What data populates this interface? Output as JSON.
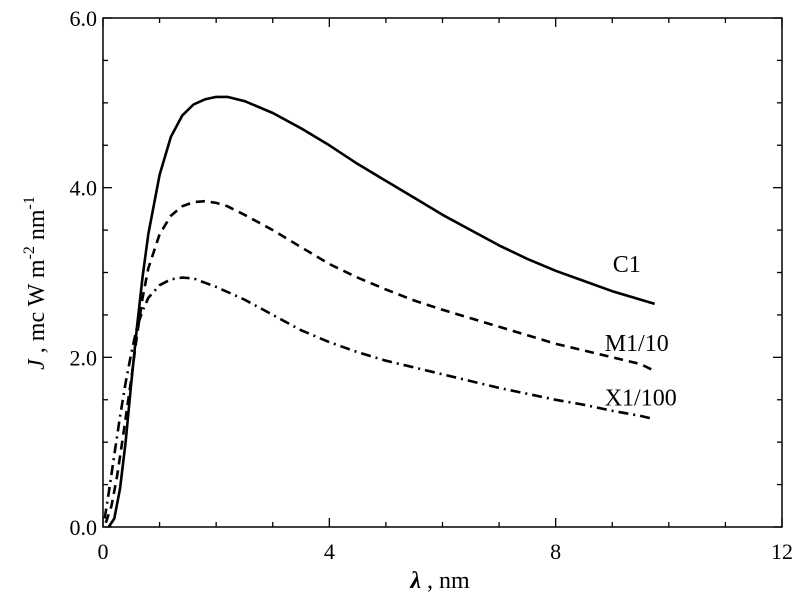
{
  "chart_data": {
    "type": "line",
    "xlabel": "nm",
    "xlabel_symbol": "λ",
    "ylabel_parts": {
      "symbol": "J",
      "units": "mc W m",
      "exp1": "-2",
      "mid": " nm",
      "exp2": "-1"
    },
    "xlim": [
      0,
      12
    ],
    "ylim": [
      0,
      6
    ],
    "x_ticks": [
      0,
      4,
      8,
      12
    ],
    "x_tick_labels": [
      "0",
      "4",
      "8",
      "12"
    ],
    "y_ticks": [
      0,
      2,
      4,
      6
    ],
    "y_tick_labels": [
      "0.0",
      "2.0",
      "4.0",
      "6.0"
    ],
    "grid": false,
    "series": [
      {
        "name": "C1",
        "style": "solid",
        "x": [
          0.1,
          0.2,
          0.3,
          0.4,
          0.5,
          0.6,
          0.7,
          0.8,
          1.0,
          1.2,
          1.4,
          1.6,
          1.8,
          2.0,
          2.2,
          2.5,
          3.0,
          3.5,
          4.0,
          4.5,
          5.0,
          5.5,
          6.0,
          6.5,
          7.0,
          7.5,
          8.0,
          8.5,
          9.0,
          9.5,
          9.75
        ],
        "y": [
          0.0,
          0.1,
          0.45,
          1.0,
          1.7,
          2.35,
          2.95,
          3.45,
          4.15,
          4.6,
          4.85,
          4.98,
          5.04,
          5.07,
          5.07,
          5.02,
          4.88,
          4.7,
          4.5,
          4.28,
          4.08,
          3.88,
          3.68,
          3.5,
          3.32,
          3.16,
          3.02,
          2.9,
          2.78,
          2.68,
          2.63
        ]
      },
      {
        "name": "M1/10",
        "style": "dashed",
        "x": [
          0.05,
          0.15,
          0.25,
          0.35,
          0.5,
          0.6,
          0.7,
          0.8,
          1.0,
          1.2,
          1.4,
          1.6,
          1.8,
          2.0,
          2.2,
          2.5,
          3.0,
          3.5,
          4.0,
          4.5,
          5.0,
          5.5,
          6.0,
          6.5,
          7.0,
          7.5,
          8.0,
          8.5,
          9.0,
          9.5,
          9.75
        ],
        "y": [
          0.05,
          0.25,
          0.6,
          1.05,
          1.75,
          2.25,
          2.7,
          3.05,
          3.45,
          3.67,
          3.78,
          3.83,
          3.84,
          3.82,
          3.78,
          3.68,
          3.5,
          3.3,
          3.1,
          2.94,
          2.8,
          2.67,
          2.56,
          2.46,
          2.36,
          2.26,
          2.16,
          2.08,
          2.0,
          1.92,
          1.84
        ]
      },
      {
        "name": "X1/100",
        "style": "dashdot",
        "x": [
          0.03,
          0.1,
          0.2,
          0.3,
          0.4,
          0.5,
          0.6,
          0.7,
          0.8,
          1.0,
          1.2,
          1.4,
          1.6,
          1.8,
          2.0,
          2.2,
          2.5,
          3.0,
          3.5,
          4.0,
          4.5,
          5.0,
          5.5,
          6.0,
          6.5,
          7.0,
          7.5,
          8.0,
          8.5,
          9.0,
          9.5,
          9.75
        ],
        "y": [
          0.1,
          0.4,
          0.85,
          1.3,
          1.7,
          2.05,
          2.35,
          2.55,
          2.7,
          2.85,
          2.92,
          2.94,
          2.93,
          2.88,
          2.83,
          2.77,
          2.68,
          2.5,
          2.32,
          2.18,
          2.06,
          1.96,
          1.88,
          1.8,
          1.72,
          1.64,
          1.57,
          1.5,
          1.44,
          1.37,
          1.31,
          1.27
        ]
      }
    ]
  }
}
